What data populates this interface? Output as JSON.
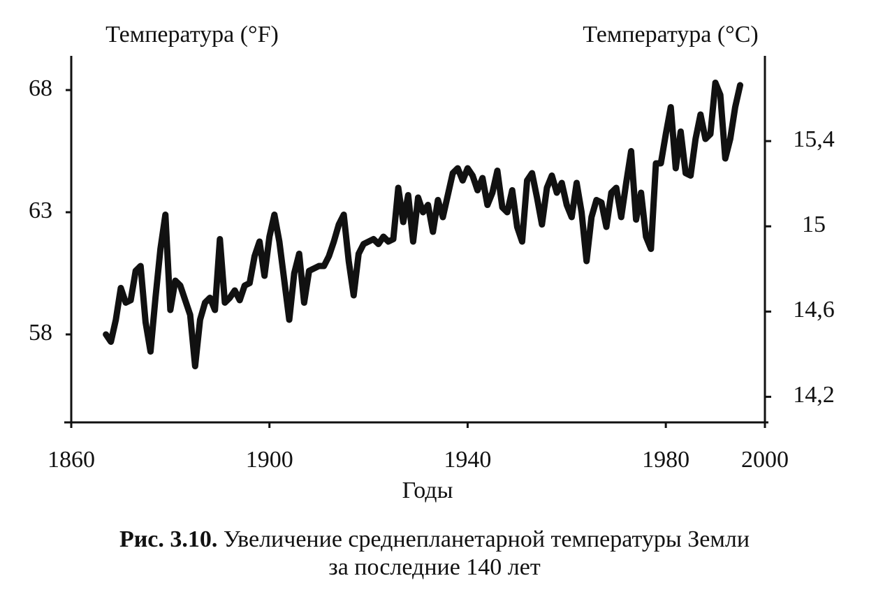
{
  "chart_data": {
    "type": "line",
    "y_label": "Температура (°F)",
    "y2_label": "Температура (°C)",
    "x_label": "Годы",
    "caption_label": "Рис. 3.10.",
    "caption": [
      "Увеличение среднепланетарной температуры Земли",
      "за последние 140 лет"
    ],
    "x": [
      1867,
      1868,
      1869,
      1870,
      1871,
      1872,
      1873,
      1874,
      1875,
      1876,
      1877,
      1878,
      1879,
      1880,
      1881,
      1882,
      1883,
      1884,
      1885,
      1886,
      1887,
      1888,
      1889,
      1890,
      1891,
      1892,
      1893,
      1894,
      1895,
      1896,
      1897,
      1898,
      1899,
      1900,
      1901,
      1902,
      1903,
      1904,
      1905,
      1906,
      1907,
      1908,
      1909,
      1910,
      1911,
      1912,
      1913,
      1914,
      1915,
      1916,
      1917,
      1918,
      1919,
      1920,
      1921,
      1922,
      1923,
      1924,
      1925,
      1926,
      1927,
      1928,
      1929,
      1930,
      1931,
      1932,
      1933,
      1934,
      1935,
      1936,
      1937,
      1938,
      1939,
      1940,
      1941,
      1942,
      1943,
      1944,
      1945,
      1946,
      1947,
      1948,
      1949,
      1950,
      1951,
      1952,
      1953,
      1954,
      1955,
      1956,
      1957,
      1958,
      1959,
      1960,
      1961,
      1962,
      1963,
      1964,
      1965,
      1966,
      1967,
      1968,
      1969,
      1970,
      1971,
      1972,
      1973,
      1974,
      1975,
      1976,
      1977,
      1978,
      1979,
      1980,
      1981,
      1982,
      1983,
      1984,
      1985,
      1986,
      1987,
      1988,
      1989,
      1990,
      1991,
      1992,
      1993,
      1994,
      1995
    ],
    "series": [
      {
        "color": "#111111",
        "values": [
          58.0,
          57.7,
          58.6,
          59.9,
          59.3,
          59.4,
          60.6,
          60.8,
          58.5,
          57.3,
          59.5,
          61.5,
          62.9,
          59.0,
          60.2,
          60.0,
          59.4,
          58.8,
          56.7,
          58.6,
          59.3,
          59.5,
          59.0,
          61.9,
          59.3,
          59.5,
          59.8,
          59.4,
          60.0,
          60.1,
          61.2,
          61.8,
          60.4,
          62.0,
          62.9,
          61.8,
          60.2,
          58.6,
          60.5,
          61.3,
          59.3,
          60.6,
          60.7,
          60.8,
          60.8,
          61.2,
          61.8,
          62.5,
          62.9,
          61.0,
          59.6,
          61.3,
          61.7,
          61.8,
          61.9,
          61.7,
          62.0,
          61.8,
          61.9,
          64.0,
          62.6,
          63.7,
          61.8,
          63.6,
          63.0,
          63.3,
          62.2,
          63.5,
          62.8,
          63.7,
          64.6,
          64.8,
          64.3,
          64.8,
          64.5,
          63.9,
          64.4,
          63.3,
          63.8,
          64.7,
          63.2,
          63.0,
          63.9,
          62.4,
          61.8,
          64.3,
          64.6,
          63.6,
          62.5,
          64.0,
          64.5,
          63.8,
          64.2,
          63.3,
          62.8,
          64.2,
          63.0,
          61.0,
          62.8,
          63.5,
          63.4,
          62.4,
          63.8,
          64.0,
          62.8,
          64.2,
          65.5,
          62.7,
          63.8,
          62.0,
          61.5,
          65.0,
          65.0,
          66.2,
          67.3,
          64.8,
          66.3,
          64.6,
          64.5,
          66.0,
          67.0,
          66.0,
          66.2,
          68.3,
          67.8,
          65.2,
          66.0,
          67.3,
          68.2
        ]
      }
    ],
    "xlim": [
      1860,
      2000
    ],
    "xticks": [
      1860,
      1900,
      1940,
      1980,
      2000
    ],
    "ylim": [
      54.4,
      69.4
    ],
    "yticks": [
      58,
      63,
      68
    ],
    "y2lim": [
      14.08,
      15.8
    ],
    "y2ticks": [
      {
        "value": 14.2,
        "label": "14,2"
      },
      {
        "value": 14.6,
        "label": "14,6"
      },
      {
        "value": 15,
        "label": "15"
      },
      {
        "value": 15.4,
        "label": "15,4"
      }
    ]
  }
}
